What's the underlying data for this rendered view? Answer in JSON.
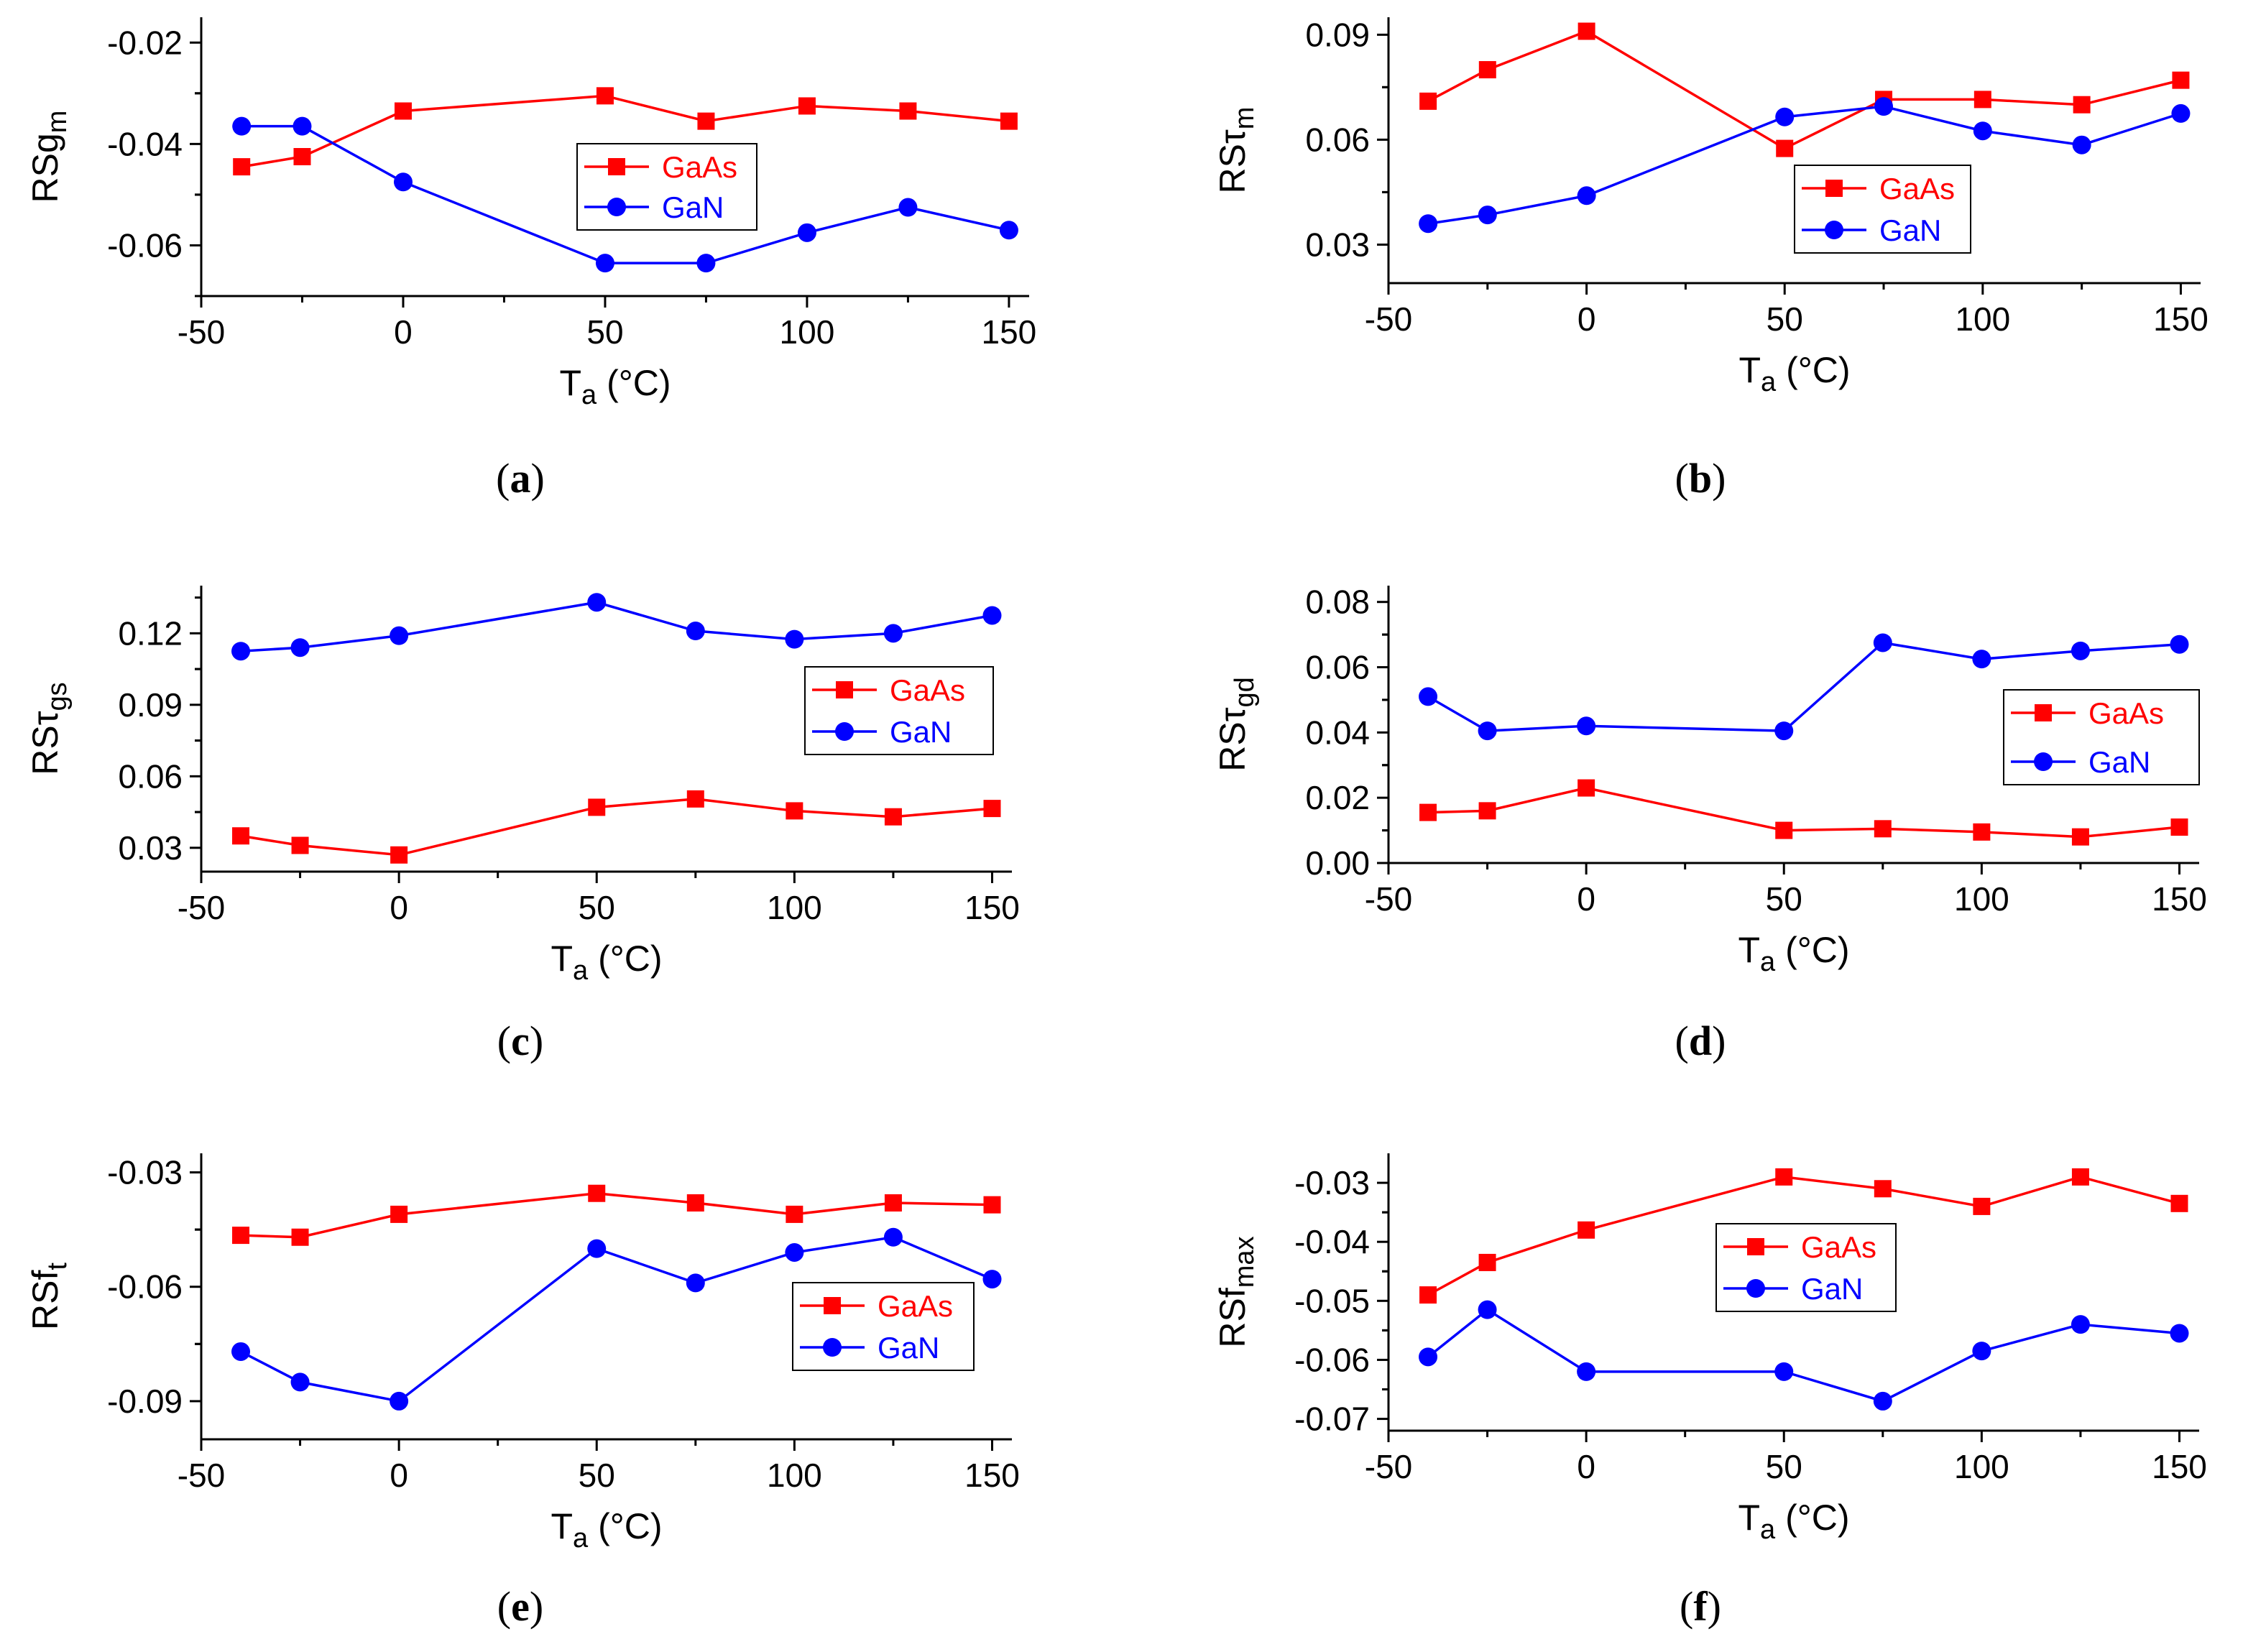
{
  "chart_data": [
    {
      "id": "a",
      "type": "line",
      "caption_letter": "a",
      "ylabel_main": "RSg",
      "ylabel_sub": "m",
      "xlabel_main": "T",
      "xlabel_sub": "a",
      "xlabel_unit": " (°C)",
      "xlim": [
        -50,
        155
      ],
      "ylim": [
        -0.07,
        -0.015
      ],
      "xticks": [
        -50,
        0,
        50,
        100,
        150
      ],
      "xtick_labels": [
        "-50",
        "0",
        "50",
        "100",
        "150"
      ],
      "yticks": [
        -0.06,
        -0.04,
        -0.02
      ],
      "ytick_labels": [
        "-0.06",
        "-0.04",
        "-0.02"
      ],
      "x": [
        -40,
        -25,
        0,
        50,
        75,
        100,
        125,
        150
      ],
      "series": [
        {
          "name": "GaAs",
          "color": "#ff0000",
          "marker": "square",
          "values": [
            -0.0445,
            -0.0425,
            -0.0335,
            -0.0305,
            -0.0355,
            -0.0325,
            -0.0335,
            -0.0355
          ]
        },
        {
          "name": "GaN",
          "color": "#0000ff",
          "marker": "circle",
          "values": [
            -0.0365,
            -0.0365,
            -0.0475,
            -0.0635,
            -0.0635,
            -0.0575,
            -0.0525,
            -0.057
          ]
        }
      ],
      "legend_position": "center"
    },
    {
      "id": "b",
      "type": "line",
      "caption_letter": "b",
      "ylabel_main": "RSτ",
      "ylabel_sub": "m",
      "xlabel_main": "T",
      "xlabel_sub": "a",
      "xlabel_unit": " (°C)",
      "xlim": [
        -50,
        155
      ],
      "ylim": [
        0.019,
        0.095
      ],
      "xticks": [
        -50,
        0,
        50,
        100,
        150
      ],
      "xtick_labels": [
        "-50",
        "0",
        "50",
        "100",
        "150"
      ],
      "yticks": [
        0.03,
        0.06,
        0.09
      ],
      "ytick_labels": [
        "0.03",
        "0.06",
        "0.09"
      ],
      "x": [
        -40,
        -25,
        0,
        50,
        75,
        100,
        125,
        150
      ],
      "series": [
        {
          "name": "GaAs",
          "color": "#ff0000",
          "marker": "square",
          "values": [
            0.071,
            0.08,
            0.091,
            0.0575,
            0.0715,
            0.0715,
            0.07,
            0.077
          ]
        },
        {
          "name": "GaN",
          "color": "#0000ff",
          "marker": "circle",
          "values": [
            0.036,
            0.0385,
            0.044,
            0.0665,
            0.0695,
            0.0625,
            0.0585,
            0.0675
          ]
        }
      ],
      "legend_position": "center-right"
    },
    {
      "id": "c",
      "type": "line",
      "caption_letter": "c",
      "ylabel_main": "RSτ",
      "ylabel_sub": "gs",
      "xlabel_main": "T",
      "xlabel_sub": "a",
      "xlabel_unit": " (°C)",
      "xlim": [
        -50,
        155
      ],
      "ylim": [
        0.02,
        0.14
      ],
      "xticks": [
        -50,
        0,
        50,
        100,
        150
      ],
      "xtick_labels": [
        "-50",
        "0",
        "50",
        "100",
        "150"
      ],
      "yticks": [
        0.03,
        0.06,
        0.09,
        0.12
      ],
      "ytick_labels": [
        "0.03",
        "0.06",
        "0.09",
        "0.12"
      ],
      "x": [
        -40,
        -25,
        0,
        50,
        75,
        100,
        125,
        150
      ],
      "series": [
        {
          "name": "GaAs",
          "color": "#ff0000",
          "marker": "square",
          "values": [
            0.035,
            0.031,
            0.027,
            0.047,
            0.0505,
            0.0455,
            0.043,
            0.0465
          ]
        },
        {
          "name": "GaN",
          "color": "#0000ff",
          "marker": "circle",
          "values": [
            0.1125,
            0.114,
            0.119,
            0.133,
            0.121,
            0.1175,
            0.12,
            0.1275
          ]
        }
      ],
      "legend_position": "right"
    },
    {
      "id": "d",
      "type": "line",
      "caption_letter": "d",
      "ylabel_main": "RSτ",
      "ylabel_sub": "gd",
      "xlabel_main": "T",
      "xlabel_sub": "a",
      "xlabel_unit": " (°C)",
      "xlim": [
        -50,
        155
      ],
      "ylim": [
        0.0,
        0.085
      ],
      "xticks": [
        -50,
        0,
        50,
        100,
        150
      ],
      "xtick_labels": [
        "-50",
        "0",
        "50",
        "100",
        "150"
      ],
      "yticks": [
        0.0,
        0.02,
        0.04,
        0.06,
        0.08
      ],
      "ytick_labels": [
        "0.00",
        "0.02",
        "0.04",
        "0.06",
        "0.08"
      ],
      "x": [
        -40,
        -25,
        0,
        50,
        75,
        100,
        125,
        150
      ],
      "series": [
        {
          "name": "GaAs",
          "color": "#ff0000",
          "marker": "square",
          "values": [
            0.0155,
            0.016,
            0.023,
            0.01,
            0.0105,
            0.0095,
            0.008,
            0.011
          ]
        },
        {
          "name": "GaN",
          "color": "#0000ff",
          "marker": "circle",
          "values": [
            0.051,
            0.0405,
            0.042,
            0.0405,
            0.0675,
            0.0625,
            0.065,
            0.067
          ]
        }
      ],
      "legend_position": "right"
    },
    {
      "id": "e",
      "type": "line",
      "caption_letter": "e",
      "ylabel_main": "RSf",
      "ylabel_sub": "t",
      "xlabel_main": "T",
      "xlabel_sub": "a",
      "xlabel_unit": " (°C)",
      "xlim": [
        -50,
        155
      ],
      "ylim": [
        -0.1,
        -0.025
      ],
      "xticks": [
        -50,
        0,
        50,
        100,
        150
      ],
      "xtick_labels": [
        "-50",
        "0",
        "50",
        "100",
        "150"
      ],
      "yticks": [
        -0.09,
        -0.06,
        -0.03
      ],
      "ytick_labels": [
        "-0.09",
        "-0.06",
        "-0.03"
      ],
      "x": [
        -40,
        -25,
        0,
        50,
        75,
        100,
        125,
        150
      ],
      "series": [
        {
          "name": "GaAs",
          "color": "#ff0000",
          "marker": "square",
          "values": [
            -0.0465,
            -0.047,
            -0.041,
            -0.0355,
            -0.038,
            -0.041,
            -0.038,
            -0.0385
          ]
        },
        {
          "name": "GaN",
          "color": "#0000ff",
          "marker": "circle",
          "values": [
            -0.077,
            -0.085,
            -0.09,
            -0.05,
            -0.059,
            -0.051,
            -0.047,
            -0.058
          ]
        }
      ],
      "legend_position": "right"
    },
    {
      "id": "f",
      "type": "line",
      "caption_letter": "f",
      "ylabel_main": "RSf",
      "ylabel_sub": "max",
      "xlabel_main": "T",
      "xlabel_sub": "a",
      "xlabel_unit": " (°C)",
      "xlim": [
        -50,
        155
      ],
      "ylim": [
        -0.072,
        -0.025
      ],
      "xticks": [
        -50,
        0,
        50,
        100,
        150
      ],
      "xtick_labels": [
        "-50",
        "0",
        "50",
        "100",
        "150"
      ],
      "yticks": [
        -0.07,
        -0.06,
        -0.05,
        -0.04,
        -0.03
      ],
      "ytick_labels": [
        "-0.07",
        "-0.06",
        "-0.05",
        "-0.04",
        "-0.03"
      ],
      "x": [
        -40,
        -25,
        0,
        50,
        75,
        100,
        125,
        150
      ],
      "series": [
        {
          "name": "GaAs",
          "color": "#ff0000",
          "marker": "square",
          "values": [
            -0.049,
            -0.0435,
            -0.038,
            -0.029,
            -0.031,
            -0.034,
            -0.029,
            -0.0335
          ]
        },
        {
          "name": "GaN",
          "color": "#0000ff",
          "marker": "circle",
          "values": [
            -0.0595,
            -0.0515,
            -0.062,
            -0.062,
            -0.067,
            -0.0585,
            -0.054,
            -0.0555
          ]
        }
      ],
      "legend_position": "center"
    }
  ]
}
